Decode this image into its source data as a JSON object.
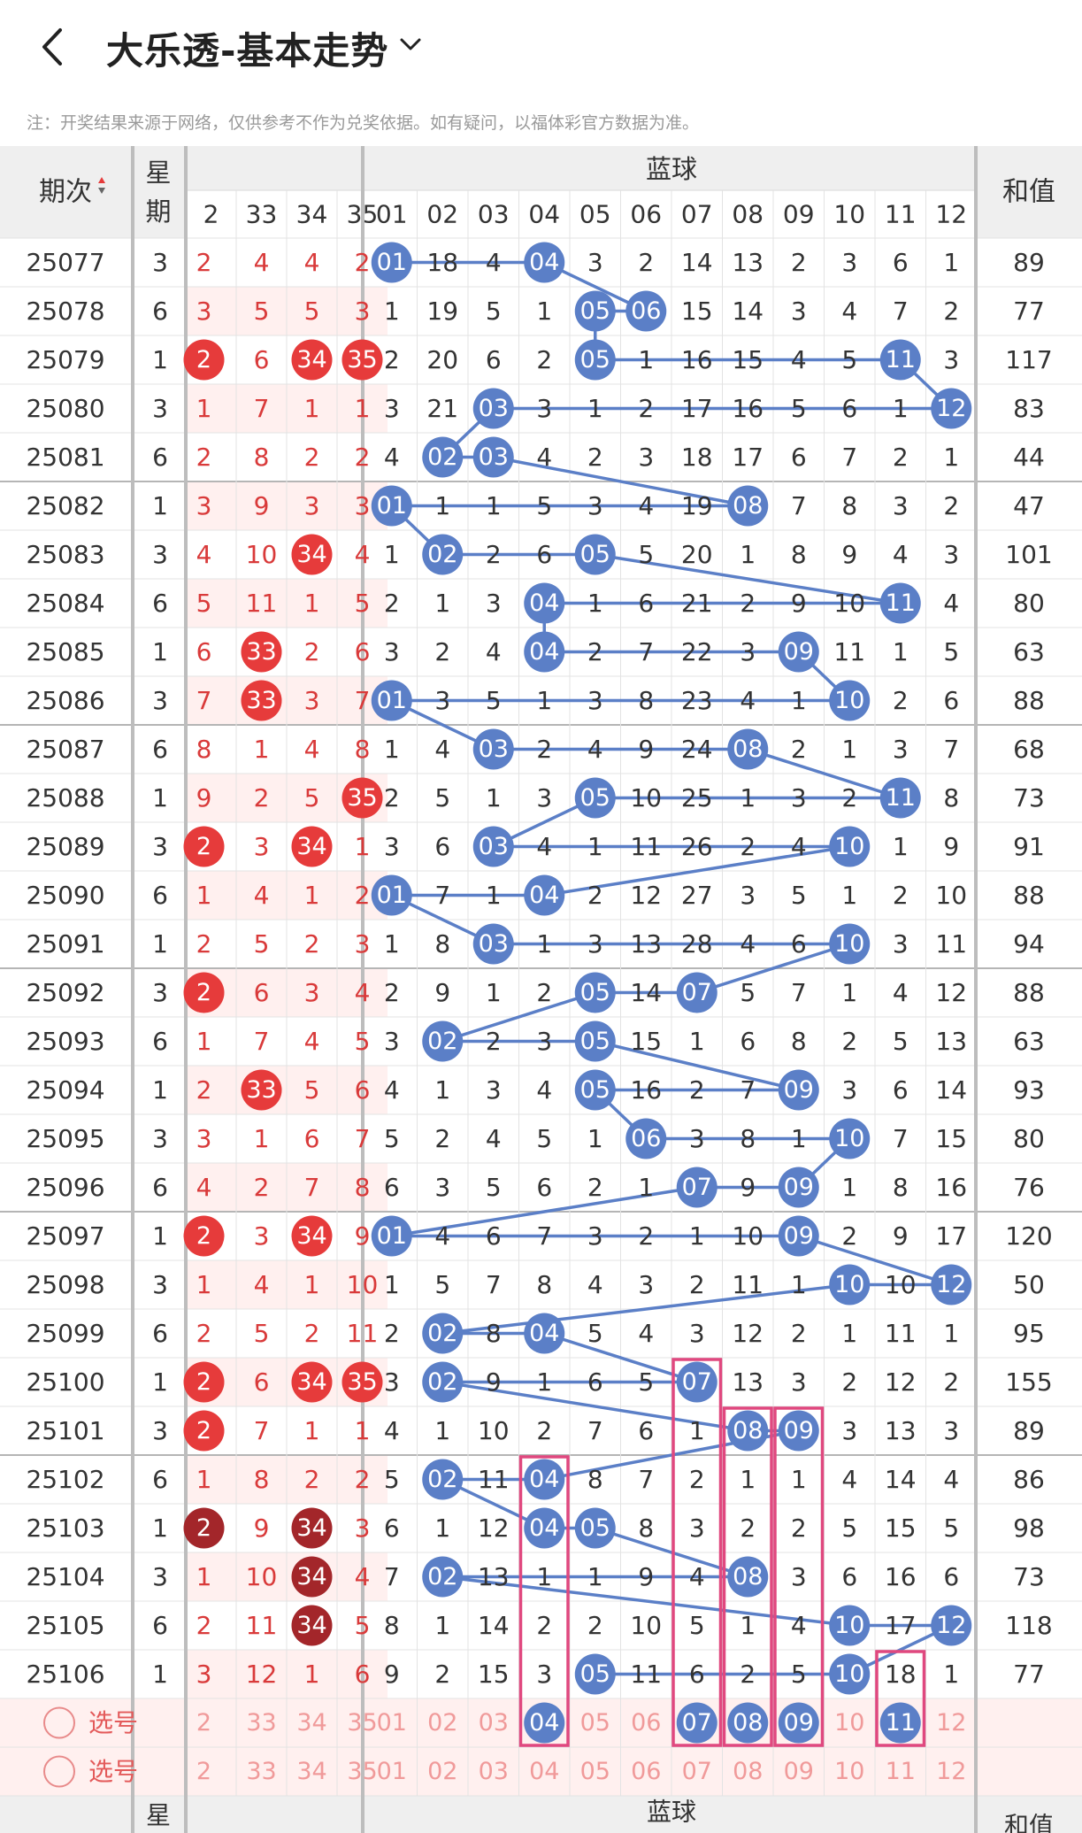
{
  "header": {
    "title": "大乐透-基本走势"
  },
  "note": "注：开奖结果来源于网络，仅供参考不作为兑奖依据。如有疑问，以福体彩官方数据为准。",
  "table": {
    "col_issue": "期次",
    "col_week": "星期",
    "col_blue": "蓝球",
    "col_sum": "和值",
    "front_headers": [
      "2",
      "33",
      "34",
      "35"
    ],
    "blue_headers": [
      "01",
      "02",
      "03",
      "04",
      "05",
      "06",
      "07",
      "08",
      "09",
      "10",
      "11",
      "12"
    ],
    "rows": [
      {
        "issue": "25077",
        "week": "3",
        "front": [
          "2",
          "4",
          "4",
          "2"
        ],
        "blue": [
          "01",
          "18",
          "4",
          "04",
          "3",
          "2",
          "14",
          "13",
          "2",
          "3",
          "6",
          "1"
        ],
        "sum": "89"
      },
      {
        "issue": "25078",
        "week": "6",
        "front": [
          "3",
          "5",
          "5",
          "3"
        ],
        "blue": [
          "1",
          "19",
          "5",
          "1",
          "05",
          "06",
          "15",
          "14",
          "3",
          "4",
          "7",
          "2"
        ],
        "sum": "77"
      },
      {
        "issue": "25079",
        "week": "1",
        "front": [
          "2",
          "6",
          "34",
          "35"
        ],
        "blue": [
          "2",
          "20",
          "6",
          "2",
          "05",
          "1",
          "16",
          "15",
          "4",
          "5",
          "11",
          "3"
        ],
        "sum": "117"
      },
      {
        "issue": "25080",
        "week": "3",
        "front": [
          "1",
          "7",
          "1",
          "1"
        ],
        "blue": [
          "3",
          "21",
          "03",
          "3",
          "1",
          "2",
          "17",
          "16",
          "5",
          "6",
          "1",
          "12"
        ],
        "sum": "83"
      },
      {
        "issue": "25081",
        "week": "6",
        "front": [
          "2",
          "8",
          "2",
          "2"
        ],
        "blue": [
          "4",
          "02",
          "03",
          "4",
          "2",
          "3",
          "18",
          "17",
          "6",
          "7",
          "2",
          "1"
        ],
        "sum": "44"
      },
      {
        "issue": "25082",
        "week": "1",
        "front": [
          "3",
          "9",
          "3",
          "3"
        ],
        "blue": [
          "01",
          "1",
          "1",
          "5",
          "3",
          "4",
          "19",
          "08",
          "7",
          "8",
          "3",
          "2"
        ],
        "sum": "47"
      },
      {
        "issue": "25083",
        "week": "3",
        "front": [
          "4",
          "10",
          "34",
          "4"
        ],
        "blue": [
          "1",
          "02",
          "2",
          "6",
          "05",
          "5",
          "20",
          "1",
          "8",
          "9",
          "4",
          "3"
        ],
        "sum": "101"
      },
      {
        "issue": "25084",
        "week": "6",
        "front": [
          "5",
          "11",
          "1",
          "5"
        ],
        "blue": [
          "2",
          "1",
          "3",
          "04",
          "1",
          "6",
          "21",
          "2",
          "9",
          "10",
          "11",
          "4"
        ],
        "sum": "80"
      },
      {
        "issue": "25085",
        "week": "1",
        "front": [
          "6",
          "33",
          "2",
          "6"
        ],
        "blue": [
          "3",
          "2",
          "4",
          "04",
          "2",
          "7",
          "22",
          "3",
          "09",
          "11",
          "1",
          "5"
        ],
        "sum": "63"
      },
      {
        "issue": "25086",
        "week": "3",
        "front": [
          "7",
          "33",
          "3",
          "7"
        ],
        "blue": [
          "01",
          "3",
          "5",
          "1",
          "3",
          "8",
          "23",
          "4",
          "1",
          "10",
          "2",
          "6"
        ],
        "sum": "88"
      },
      {
        "issue": "25087",
        "week": "6",
        "front": [
          "8",
          "1",
          "4",
          "8"
        ],
        "blue": [
          "1",
          "4",
          "03",
          "2",
          "4",
          "9",
          "24",
          "08",
          "2",
          "1",
          "3",
          "7"
        ],
        "sum": "68"
      },
      {
        "issue": "25088",
        "week": "1",
        "front": [
          "9",
          "2",
          "5",
          "35"
        ],
        "blue": [
          "2",
          "5",
          "1",
          "3",
          "05",
          "10",
          "25",
          "1",
          "3",
          "2",
          "11",
          "8"
        ],
        "sum": "73"
      },
      {
        "issue": "25089",
        "week": "3",
        "front": [
          "2",
          "3",
          "34",
          "1"
        ],
        "blue": [
          "3",
          "6",
          "03",
          "4",
          "1",
          "11",
          "26",
          "2",
          "4",
          "10",
          "1",
          "9"
        ],
        "sum": "91"
      },
      {
        "issue": "25090",
        "week": "6",
        "front": [
          "1",
          "4",
          "1",
          "2"
        ],
        "blue": [
          "01",
          "7",
          "1",
          "04",
          "2",
          "12",
          "27",
          "3",
          "5",
          "1",
          "2",
          "10"
        ],
        "sum": "88"
      },
      {
        "issue": "25091",
        "week": "1",
        "front": [
          "2",
          "5",
          "2",
          "3"
        ],
        "blue": [
          "1",
          "8",
          "03",
          "1",
          "3",
          "13",
          "28",
          "4",
          "6",
          "10",
          "3",
          "11"
        ],
        "sum": "94"
      },
      {
        "issue": "25092",
        "week": "3",
        "front": [
          "2",
          "6",
          "3",
          "4"
        ],
        "blue": [
          "2",
          "9",
          "1",
          "2",
          "05",
          "14",
          "07",
          "5",
          "7",
          "1",
          "4",
          "12"
        ],
        "sum": "88"
      },
      {
        "issue": "25093",
        "week": "6",
        "front": [
          "1",
          "7",
          "4",
          "5"
        ],
        "blue": [
          "3",
          "02",
          "2",
          "3",
          "05",
          "15",
          "1",
          "6",
          "8",
          "2",
          "5",
          "13"
        ],
        "sum": "63"
      },
      {
        "issue": "25094",
        "week": "1",
        "front": [
          "2",
          "33",
          "5",
          "6"
        ],
        "blue": [
          "4",
          "1",
          "3",
          "4",
          "05",
          "16",
          "2",
          "7",
          "09",
          "3",
          "6",
          "14"
        ],
        "sum": "93"
      },
      {
        "issue": "25095",
        "week": "3",
        "front": [
          "3",
          "1",
          "6",
          "7"
        ],
        "blue": [
          "5",
          "2",
          "4",
          "5",
          "1",
          "06",
          "3",
          "8",
          "1",
          "10",
          "7",
          "15"
        ],
        "sum": "80"
      },
      {
        "issue": "25096",
        "week": "6",
        "front": [
          "4",
          "2",
          "7",
          "8"
        ],
        "blue": [
          "6",
          "3",
          "5",
          "6",
          "2",
          "1",
          "07",
          "9",
          "09",
          "1",
          "8",
          "16"
        ],
        "sum": "76"
      },
      {
        "issue": "25097",
        "week": "1",
        "front": [
          "2",
          "3",
          "34",
          "9"
        ],
        "blue": [
          "01",
          "4",
          "6",
          "7",
          "3",
          "2",
          "1",
          "10",
          "09",
          "2",
          "9",
          "17"
        ],
        "sum": "120"
      },
      {
        "issue": "25098",
        "week": "3",
        "front": [
          "1",
          "4",
          "1",
          "10"
        ],
        "blue": [
          "1",
          "5",
          "7",
          "8",
          "4",
          "3",
          "2",
          "11",
          "1",
          "10",
          "10",
          "12"
        ],
        "sum": "50"
      },
      {
        "issue": "25099",
        "week": "6",
        "front": [
          "2",
          "5",
          "2",
          "11"
        ],
        "blue": [
          "2",
          "02",
          "8",
          "04",
          "5",
          "4",
          "3",
          "12",
          "2",
          "1",
          "11",
          "1"
        ],
        "sum": "95"
      },
      {
        "issue": "25100",
        "week": "1",
        "front": [
          "2",
          "6",
          "34",
          "35"
        ],
        "blue": [
          "3",
          "02",
          "9",
          "1",
          "6",
          "5",
          "07",
          "13",
          "3",
          "2",
          "12",
          "2"
        ],
        "sum": "155"
      },
      {
        "issue": "25101",
        "week": "3",
        "front": [
          "2",
          "7",
          "1",
          "1"
        ],
        "blue": [
          "4",
          "1",
          "10",
          "2",
          "7",
          "6",
          "1",
          "08",
          "09",
          "3",
          "13",
          "3"
        ],
        "sum": "89"
      },
      {
        "issue": "25102",
        "week": "6",
        "front": [
          "1",
          "8",
          "2",
          "2"
        ],
        "blue": [
          "5",
          "02",
          "11",
          "04",
          "8",
          "7",
          "2",
          "1",
          "1",
          "4",
          "14",
          "4"
        ],
        "sum": "86"
      },
      {
        "issue": "25103",
        "week": "1",
        "front": [
          "2",
          "9",
          "34",
          "3"
        ],
        "blue": [
          "6",
          "1",
          "12",
          "04",
          "05",
          "8",
          "3",
          "2",
          "2",
          "5",
          "15",
          "5"
        ],
        "sum": "98"
      },
      {
        "issue": "25104",
        "week": "3",
        "front": [
          "1",
          "10",
          "34",
          "4"
        ],
        "blue": [
          "7",
          "02",
          "13",
          "1",
          "1",
          "9",
          "4",
          "08",
          "3",
          "6",
          "16",
          "6"
        ],
        "sum": "73"
      },
      {
        "issue": "25105",
        "week": "6",
        "front": [
          "2",
          "11",
          "34",
          "5"
        ],
        "blue": [
          "8",
          "1",
          "14",
          "2",
          "2",
          "10",
          "5",
          "1",
          "4",
          "10",
          "17",
          "12"
        ],
        "sum": "118"
      },
      {
        "issue": "25106",
        "week": "1",
        "front": [
          "3",
          "12",
          "1",
          "6"
        ],
        "blue": [
          "9",
          "2",
          "15",
          "3",
          "05",
          "11",
          "6",
          "2",
          "5",
          "10",
          "18",
          "1"
        ],
        "sum": "77"
      }
    ],
    "select_label": "选号",
    "select_row1_front": [
      "2",
      "33",
      "34",
      "35"
    ],
    "select_row1_blue": [
      "01",
      "02",
      "03",
      "04",
      "05",
      "06",
      "07",
      "08",
      "09",
      "10",
      "11",
      "12"
    ],
    "select_row2_front": [
      "2",
      "33",
      "34",
      "35"
    ],
    "select_row2_blue": [
      "01",
      "02",
      "03",
      "04",
      "05",
      "06",
      "07",
      "08",
      "09",
      "10",
      "11",
      "12"
    ],
    "footer_week": "星",
    "footer_blue": "蓝球",
    "footer_sum": "和值"
  },
  "hits": {
    "front": [
      [],
      [],
      [
        0,
        2,
        3
      ],
      [],
      [],
      [],
      [
        2
      ],
      [],
      [
        1
      ],
      [
        1
      ],
      [],
      [
        3
      ],
      [
        0,
        2
      ],
      [],
      [],
      [
        0
      ],
      [],
      [
        1
      ],
      [],
      [],
      [
        0,
        2
      ],
      [],
      [],
      [
        0,
        2,
        3
      ],
      [
        0
      ],
      [],
      [
        0,
        2
      ],
      [
        2
      ],
      [
        2
      ],
      []
    ],
    "blue": [
      [
        0,
        3
      ],
      [
        4,
        5
      ],
      [
        4,
        10
      ],
      [
        2,
        11
      ],
      [
        1,
        2
      ],
      [
        0,
        7
      ],
      [
        1,
        4
      ],
      [
        3,
        10
      ],
      [
        3,
        8
      ],
      [
        0,
        9
      ],
      [
        2,
        7
      ],
      [
        4,
        10
      ],
      [
        2,
        9
      ],
      [
        0,
        3
      ],
      [
        2,
        9
      ],
      [
        4,
        6
      ],
      [
        1,
        4
      ],
      [
        4,
        8
      ],
      [
        5,
        9
      ],
      [
        6,
        8
      ],
      [
        0,
        8
      ],
      [
        9,
        11
      ],
      [
        1,
        3
      ],
      [
        1,
        6
      ],
      [
        7,
        8
      ],
      [
        1,
        3
      ],
      [
        3,
        4
      ],
      [
        1,
        7
      ],
      [
        9,
        11
      ],
      [
        4,
        9
      ]
    ],
    "front_dark_rows": [
      26,
      27,
      28
    ],
    "selected_blue": [
      3,
      6,
      7,
      8,
      10
    ]
  },
  "colors": {
    "blue_ball": "#5b7fc7",
    "red_ball": "#e63b3b",
    "dark_red_ball": "#a3262a",
    "red_text": "#d93a3a",
    "pink_box": "#e0487f",
    "pink_bg": "#fff0ef",
    "header_bg": "#efefef"
  }
}
